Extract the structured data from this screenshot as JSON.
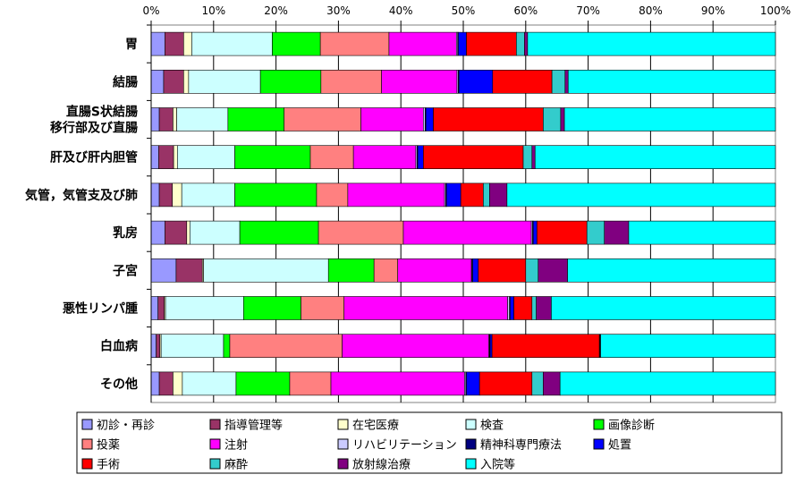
{
  "chart_data": {
    "type": "bar",
    "orientation": "horizontal",
    "stacked": true,
    "percent": true,
    "xlim": [
      0,
      100
    ],
    "x_ticks": [
      "0%",
      "10%",
      "20%",
      "30%",
      "40%",
      "50%",
      "60%",
      "70%",
      "80%",
      "90%",
      "100%"
    ],
    "grid": true,
    "legend_position": "bottom",
    "categories": [
      [
        "胃"
      ],
      [
        "結腸"
      ],
      [
        "直腸S状結腸",
        "移行部及び直腸"
      ],
      [
        "肝及び肝内胆管"
      ],
      [
        "気管，気管支及び肺"
      ],
      [
        "乳房"
      ],
      [
        "子宮"
      ],
      [
        "悪性リンパ腫"
      ],
      [
        "白血病"
      ],
      [
        "その他"
      ]
    ],
    "series": [
      {
        "name": "初診・再診",
        "color": "#9999ff",
        "values": [
          2.2,
          2.0,
          1.3,
          1.2,
          1.3,
          2.2,
          4.0,
          1.1,
          0.8,
          1.3
        ]
      },
      {
        "name": "指導管理等",
        "color": "#993366",
        "values": [
          3.0,
          3.2,
          2.2,
          2.4,
          2.1,
          3.5,
          4.2,
          1.0,
          0.6,
          2.2
        ]
      },
      {
        "name": "在宅医療",
        "color": "#ffffcc",
        "values": [
          1.3,
          0.8,
          0.6,
          0.6,
          1.5,
          0.5,
          0.2,
          0.2,
          0.2,
          1.5
        ]
      },
      {
        "name": "検査",
        "color": "#ccffff",
        "values": [
          12.9,
          11.5,
          8.2,
          9.2,
          8.5,
          8.0,
          20.0,
          12.5,
          10.0,
          8.6
        ]
      },
      {
        "name": "画像診断",
        "color": "#00ff00",
        "values": [
          7.7,
          9.7,
          9.0,
          12.1,
          13.1,
          12.6,
          7.3,
          9.2,
          1.0,
          8.6
        ]
      },
      {
        "name": "投薬",
        "color": "#ff8080",
        "values": [
          11.0,
          9.7,
          12.3,
          6.9,
          5.0,
          13.6,
          3.8,
          6.9,
          18.0,
          6.6
        ]
      },
      {
        "name": "注射",
        "color": "#ff00ff",
        "values": [
          10.8,
          12.1,
          10.0,
          10.0,
          15.5,
          20.5,
          11.8,
          26.2,
          23.5,
          21.4
        ]
      },
      {
        "name": "リハビリテーション",
        "color": "#ccccff",
        "values": [
          0.2,
          0.2,
          0.3,
          0.2,
          0.2,
          0.2,
          0.1,
          0.3,
          0.1,
          0.2
        ]
      },
      {
        "name": "精神科専門療法",
        "color": "#000080",
        "values": [
          0.1,
          0.1,
          0.1,
          0.1,
          0.1,
          0.1,
          0.1,
          0.1,
          0.1,
          0.1
        ]
      },
      {
        "name": "処置",
        "color": "#0000ff",
        "values": [
          1.3,
          5.4,
          1.2,
          0.9,
          2.3,
          0.6,
          0.9,
          0.6,
          0.3,
          2.1
        ]
      },
      {
        "name": "手術",
        "color": "#ff0000",
        "values": [
          8.0,
          9.5,
          17.6,
          16.0,
          3.6,
          8.0,
          7.6,
          2.9,
          17.2,
          8.4
        ]
      },
      {
        "name": "麻酔",
        "color": "#33cccc",
        "values": [
          1.3,
          2.1,
          2.8,
          1.4,
          1.0,
          2.8,
          2.0,
          0.7,
          0.1,
          1.8
        ]
      },
      {
        "name": "放射線治療",
        "color": "#800080",
        "values": [
          0.5,
          0.5,
          0.6,
          0.5,
          2.8,
          3.9,
          4.7,
          2.4,
          0.1,
          2.7
        ]
      },
      {
        "name": "入院等",
        "color": "#00ffff",
        "values": [
          39.7,
          33.2,
          33.8,
          38.5,
          43.0,
          23.5,
          33.3,
          35.9,
          28.0,
          34.5
        ]
      }
    ]
  }
}
